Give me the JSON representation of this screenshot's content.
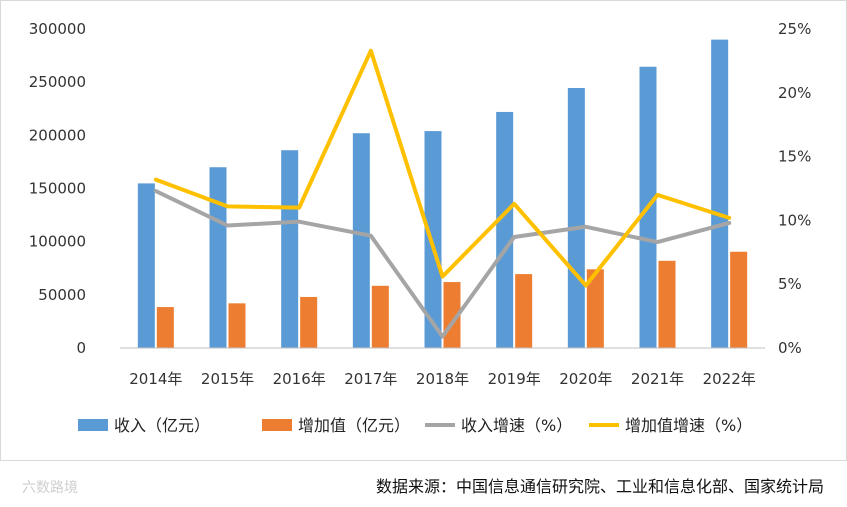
{
  "chart_data": {
    "type": "bar",
    "categories": [
      "2014年",
      "2015年",
      "2016年",
      "2017年",
      "2018年",
      "2019年",
      "2020年",
      "2021年",
      "2022年"
    ],
    "series": [
      {
        "name": "收入（亿元）",
        "kind": "bar",
        "axis": "left",
        "color": "#5B9BD5",
        "values": [
          154800,
          170000,
          186000,
          202000,
          204000,
          222000,
          244500,
          264500,
          290000
        ]
      },
      {
        "name": "增加值（亿元）",
        "kind": "bar",
        "axis": "left",
        "color": "#ED7D31",
        "values": [
          38500,
          42000,
          48000,
          58500,
          62000,
          69500,
          74000,
          82000,
          90500
        ]
      },
      {
        "name": "收入增速（%）",
        "kind": "line",
        "axis": "right",
        "color": "#A5A5A5",
        "values": [
          12.3,
          9.6,
          9.9,
          8.8,
          0.9,
          8.7,
          9.5,
          8.3,
          9.8
        ]
      },
      {
        "name": "增加值增速（%）",
        "kind": "line",
        "axis": "right",
        "color": "#FFC000",
        "values": [
          13.2,
          11.1,
          11.0,
          23.3,
          5.6,
          11.3,
          4.9,
          12.0,
          10.2
        ]
      }
    ],
    "y_left": {
      "min": 0,
      "max": 300000,
      "ticks": [
        "0",
        "50000",
        "100000",
        "150000",
        "200000",
        "250000",
        "300000"
      ]
    },
    "y_right": {
      "min": 0,
      "max": 25,
      "ticks": [
        "0%",
        "5%",
        "10%",
        "15%",
        "20%",
        "25%"
      ]
    },
    "legend_position": "bottom",
    "grid": false
  },
  "source_text": "数据来源：中国信息通信研究院、工业和信息化部、国家统计局",
  "watermark_text": "六数路境"
}
